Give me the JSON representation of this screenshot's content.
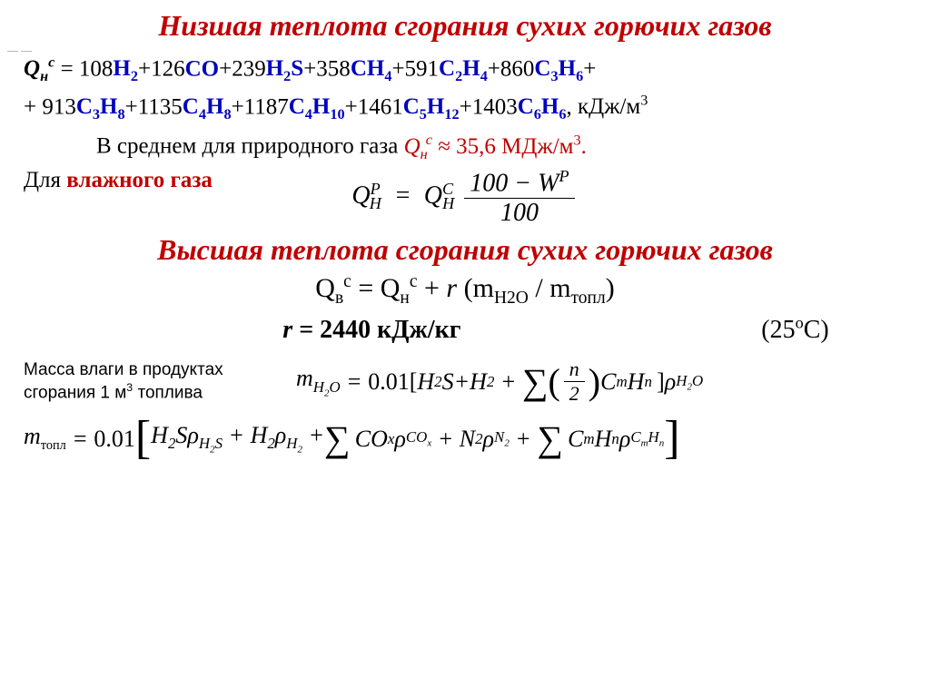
{
  "title1": "Низшая теплота сгорания сухих горючих газов",
  "title2": "Высшая теплота сгорания сухих горючих газов",
  "q_terms": [
    {
      "c": "108",
      "f": "H",
      "s1": "2"
    },
    {
      "c": "126",
      "f": "CO"
    },
    {
      "c": "239",
      "f": "H",
      "s1": "2",
      "tail": "S"
    },
    {
      "c": "358",
      "f": "CH",
      "s1": "4"
    },
    {
      "c": "591",
      "f": "C",
      "s1": "2",
      "f2": "H",
      "s2": "4"
    },
    {
      "c": "860",
      "f": "C",
      "s1": "3",
      "f2": "H",
      "s2": "6"
    },
    {
      "c": "913",
      "f": "C",
      "s1": "3",
      "f2": "H",
      "s2": "8"
    },
    {
      "c": "1135",
      "f": "C",
      "s1": "4",
      "f2": "H",
      "s2": "8"
    },
    {
      "c": "1187",
      "f": "C",
      "s1": "4",
      "f2": "H",
      "s2": "10"
    },
    {
      "c": "1461",
      "f": "C",
      "s1": "5",
      "f2": "H",
      "s2": "12"
    },
    {
      "c": "1403",
      "f": "C",
      "s1": "6",
      "f2": "H",
      "s2": "6"
    }
  ],
  "q_lead": "Q",
  "q_sub": "н",
  "q_sup": "с",
  "eq_sign": " = ",
  "unit1": "кДж/м",
  "unit1_sup": "3",
  "avg_text_1": "В среднем для природного газа ",
  "avg_sym": "Q",
  "avg_sub": "н",
  "avg_sup": "с",
  "avg_approx": " ≈ 35,6  МДж/м",
  "avg_unit_sup": "3",
  "wet_label_1": "Для ",
  "wet_label_2": "влажного газа",
  "wet_eq": {
    "lhs_Q": "Q",
    "lhs_sub": "H",
    "lhs_sup": "P",
    "rhs_Q": "Q",
    "rhs_sub": "H",
    "rhs_sup": "C",
    "num": "100 − W",
    "num_sup": "P",
    "den": "100"
  },
  "higher_eq": {
    "lhs_Q": "Q",
    "lhs_sub": "в",
    "lhs_sup": "с",
    "eq": " = ",
    "rhs_Q": "Q",
    "rhs_sub": "н",
    "rhs_sup": "с",
    "plus": " + ",
    "r": "r",
    "paren_open": " (m",
    "m1_sub": "H2O",
    "slash": " / m",
    "m2_sub": "топл",
    "paren_close": ")"
  },
  "r_line": {
    "r": "r",
    "eq": " = 2440 кДж/кг",
    "temp": "(25",
    "deg": "o",
    "tempC": "С)"
  },
  "caption": "Масса влаги в продуктах сгорания 1 м",
  "caption_sup": "3",
  "caption_tail": " топлива",
  "m_h2o_eq": {
    "lhs": "m",
    "lhs_sub": "H",
    "lhs_sub2": "2",
    "lhs_sub3": "O",
    "val": "0.01",
    "br_open": "[",
    "br_close": "]",
    "t1": "H",
    "t1s": "2",
    "t1tail": "S",
    "plus": " + ",
    "t2": "H",
    "t2s": "2",
    "sum": "∑",
    "frac_n": "n",
    "frac_d": "2",
    "cmhn_C": "C",
    "cmhn_m": "m",
    "cmhn_H": "H",
    "cmhn_n": "n",
    "rho": "ρ",
    "rho_sub": "H",
    "rho_s2": "2",
    "rho_s3": "O"
  },
  "m_fuel_eq": {
    "lhs": "m",
    "lhs_sub": "топл",
    "val": "0.01",
    "terms": [
      {
        "sym": "H",
        "s1": "2",
        "tail": "S",
        "rho_sub": "H",
        "rs1": "2",
        "rtail": "S"
      },
      {
        "sym": "H",
        "s1": "2",
        "rho_sub": "H",
        "rs1": "2"
      }
    ],
    "sum": "∑",
    "cox": "CO",
    "cox_s": "x",
    "rho_cox": "CO",
    "rho_cox_s": "x",
    "n2": "N",
    "n2_s": "2",
    "rho_n2": "N",
    "rho_n2_s": "2",
    "cmhn_C": "C",
    "cmhn_m": "m",
    "cmhn_H": "H",
    "cmhn_n": "n",
    "rho": "ρ"
  },
  "colors": {
    "heading": "#c00000",
    "chem": "#0000c0",
    "text": "#000000",
    "bg": "#ffffff"
  },
  "fonts": {
    "heading_pt": 32,
    "body_pt": 25,
    "eq_pt": 28,
    "caption_pt": 19
  }
}
